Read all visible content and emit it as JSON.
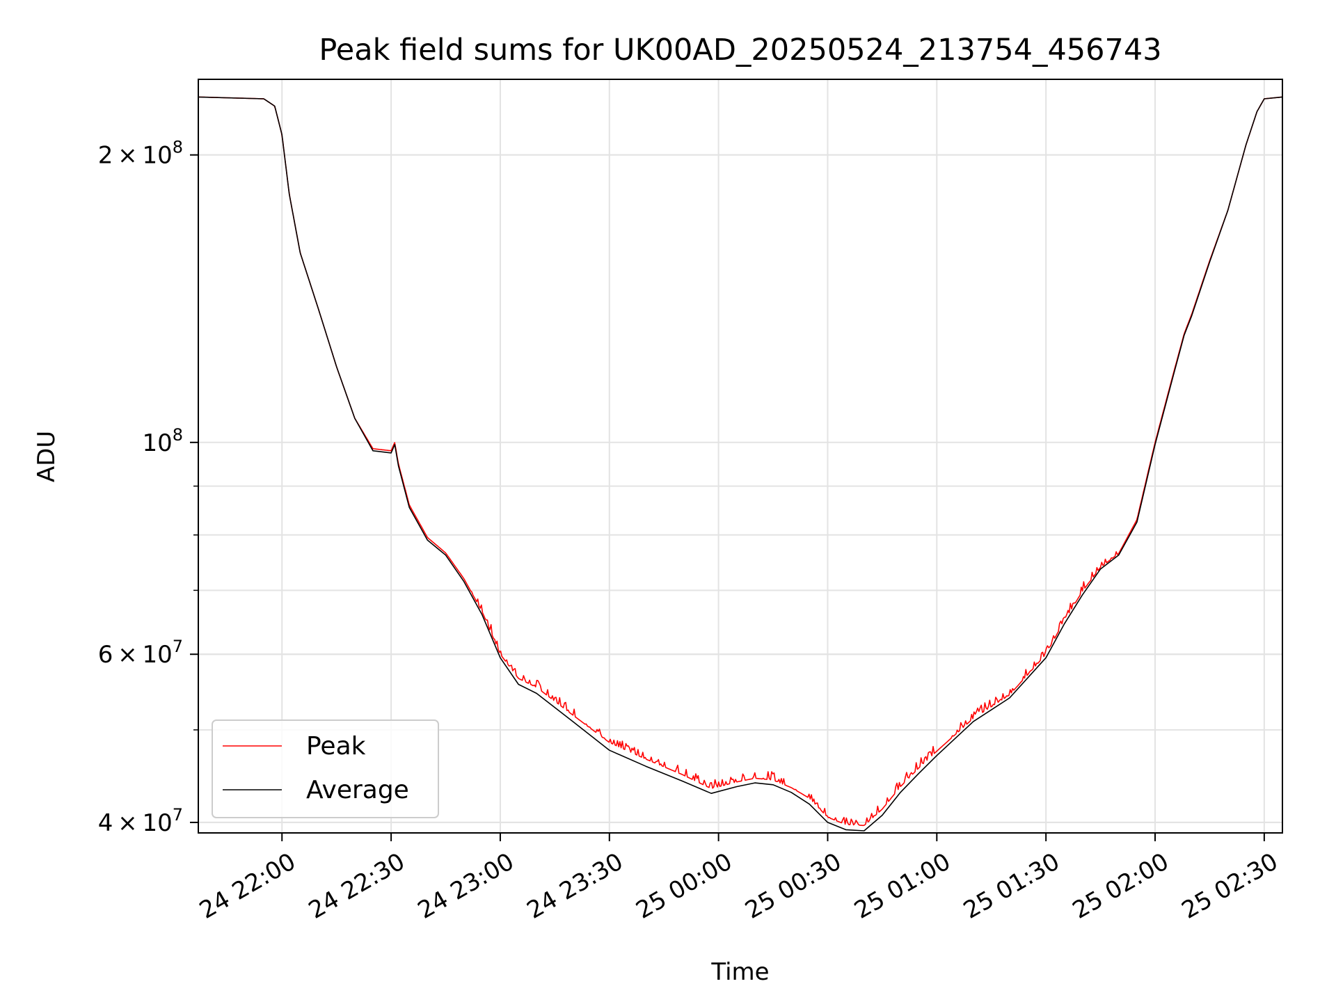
{
  "chart_data": {
    "type": "line",
    "title": "Peak field sums for UK00AD_20250524_213754_456743",
    "xlabel": "Time",
    "ylabel": "ADU",
    "yscale": "log",
    "xlim": [
      "2025-05-24 21:37",
      "2025-05-25 02:35"
    ],
    "ylim": [
      39000000,
      240000000
    ],
    "grid": true,
    "legend_position": "lower-left",
    "x_ticks": [
      "24 22:00",
      "24 22:30",
      "24 23:00",
      "24 23:30",
      "25 00:00",
      "25 00:30",
      "25 01:00",
      "25 01:30",
      "25 02:00",
      "25 02:30"
    ],
    "x_tick_values": [
      "2025-05-24 22:00",
      "2025-05-24 22:30",
      "2025-05-24 23:00",
      "2025-05-24 23:30",
      "2025-05-25 00:00",
      "2025-05-25 00:30",
      "2025-05-25 01:00",
      "2025-05-25 01:30",
      "2025-05-25 02:00",
      "2025-05-25 02:30"
    ],
    "y_major_ticks": [
      {
        "value": 200000000,
        "mantissa": "2",
        "exponent": "8"
      },
      {
        "value": 100000000,
        "mantissa": "",
        "exponent": "8"
      },
      {
        "value": 60000000,
        "mantissa": "6",
        "exponent": "7"
      },
      {
        "value": 40000000,
        "mantissa": "4",
        "exponent": "7"
      }
    ],
    "y_minor_ticks": [
      40000000,
      50000000,
      60000000,
      70000000,
      80000000,
      90000000,
      200000000
    ],
    "series": [
      {
        "name": "Peak",
        "color": "#ff0000",
        "noise_note": "red, jittery above the average",
        "x": [
          "2025-05-24 21:37",
          "2025-05-24 21:55",
          "2025-05-24 21:58",
          "2025-05-24 22:00",
          "2025-05-24 22:02",
          "2025-05-24 22:05",
          "2025-05-24 22:10",
          "2025-05-24 22:15",
          "2025-05-24 22:20",
          "2025-05-24 22:25",
          "2025-05-24 22:30",
          "2025-05-24 22:31",
          "2025-05-24 22:32",
          "2025-05-24 22:35",
          "2025-05-24 22:40",
          "2025-05-24 22:45",
          "2025-05-24 22:50",
          "2025-05-24 22:55",
          "2025-05-24 23:00",
          "2025-05-24 23:05",
          "2025-05-24 23:10",
          "2025-05-24 23:20",
          "2025-05-24 23:30",
          "2025-05-24 23:40",
          "2025-05-24 23:50",
          "2025-05-24 23:58",
          "2025-05-25 00:05",
          "2025-05-25 00:10",
          "2025-05-25 00:15",
          "2025-05-25 00:20",
          "2025-05-25 00:25",
          "2025-05-25 00:30",
          "2025-05-25 00:35",
          "2025-05-25 00:40",
          "2025-05-25 00:45",
          "2025-05-25 00:50",
          "2025-05-25 00:55",
          "2025-05-25 01:00",
          "2025-05-25 01:10",
          "2025-05-25 01:20",
          "2025-05-25 01:30",
          "2025-05-25 01:35",
          "2025-05-25 01:40",
          "2025-05-25 01:45",
          "2025-05-25 01:50",
          "2025-05-25 01:55",
          "2025-05-25 02:00",
          "2025-05-25 02:05",
          "2025-05-25 02:08",
          "2025-05-25 02:10",
          "2025-05-25 02:15",
          "2025-05-25 02:20",
          "2025-05-25 02:25",
          "2025-05-25 02:28",
          "2025-05-25 02:30",
          "2025-05-25 02:35"
        ],
        "y": [
          230000000,
          229000000,
          225000000,
          210000000,
          182000000,
          158000000,
          138000000,
          120000000,
          106000000,
          98500000,
          98000000,
          100000000,
          95000000,
          86000000,
          79500000,
          76600000,
          72000000,
          66500000,
          60000000,
          56600000,
          55400000,
          51800000,
          48500000,
          46600000,
          44900000,
          43400000,
          44100000,
          44500000,
          44300000,
          43500000,
          42400000,
          40500000,
          39800000,
          39700000,
          41300000,
          43600000,
          45600000,
          47500000,
          51400000,
          54400000,
          60000000,
          65000000,
          69800000,
          74000000,
          76500000,
          83000000,
          100000000,
          118000000,
          130000000,
          136000000,
          155000000,
          175000000,
          205000000,
          222000000,
          229000000,
          230000000
        ]
      },
      {
        "name": "Average",
        "color": "#000000",
        "x": [
          "2025-05-24 21:37",
          "2025-05-24 21:55",
          "2025-05-24 21:58",
          "2025-05-24 22:00",
          "2025-05-24 22:02",
          "2025-05-24 22:05",
          "2025-05-24 22:10",
          "2025-05-24 22:15",
          "2025-05-24 22:20",
          "2025-05-24 22:25",
          "2025-05-24 22:30",
          "2025-05-24 22:31",
          "2025-05-24 22:32",
          "2025-05-24 22:35",
          "2025-05-24 22:40",
          "2025-05-24 22:45",
          "2025-05-24 22:50",
          "2025-05-24 22:55",
          "2025-05-24 23:00",
          "2025-05-24 23:05",
          "2025-05-24 23:10",
          "2025-05-24 23:20",
          "2025-05-24 23:30",
          "2025-05-24 23:40",
          "2025-05-24 23:50",
          "2025-05-24 23:58",
          "2025-05-25 00:05",
          "2025-05-25 00:10",
          "2025-05-25 00:15",
          "2025-05-25 00:20",
          "2025-05-25 00:25",
          "2025-05-25 00:30",
          "2025-05-25 00:35",
          "2025-05-25 00:40",
          "2025-05-25 00:45",
          "2025-05-25 00:50",
          "2025-05-25 00:55",
          "2025-05-25 01:00",
          "2025-05-25 01:10",
          "2025-05-25 01:20",
          "2025-05-25 01:30",
          "2025-05-25 01:35",
          "2025-05-25 01:40",
          "2025-05-25 01:45",
          "2025-05-25 01:50",
          "2025-05-25 01:55",
          "2025-05-25 02:00",
          "2025-05-25 02:05",
          "2025-05-25 02:08",
          "2025-05-25 02:10",
          "2025-05-25 02:15",
          "2025-05-25 02:20",
          "2025-05-25 02:25",
          "2025-05-25 02:28",
          "2025-05-25 02:30",
          "2025-05-25 02:35"
        ],
        "y": [
          230000000,
          229000000,
          225000000,
          210000000,
          182000000,
          158000000,
          138000000,
          120000000,
          106000000,
          98000000,
          97500000,
          99500000,
          94500000,
          85500000,
          79000000,
          76200000,
          71500000,
          66000000,
          59500000,
          55800000,
          54600000,
          51000000,
          47600000,
          45800000,
          44200000,
          42900000,
          43600000,
          44000000,
          43800000,
          43000000,
          41800000,
          40000000,
          39300000,
          39200000,
          40700000,
          43000000,
          45000000,
          47000000,
          51000000,
          54000000,
          59500000,
          64500000,
          69200000,
          73700000,
          76200000,
          82500000,
          99500000,
          117500000,
          129500000,
          135500000,
          154500000,
          175000000,
          205000000,
          222000000,
          229000000,
          230000000
        ]
      }
    ]
  }
}
